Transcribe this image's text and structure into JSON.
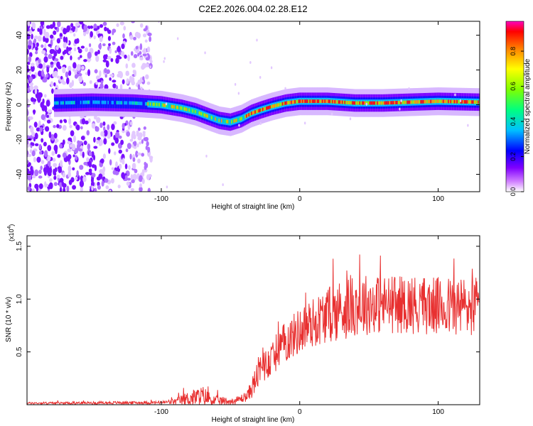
{
  "title": "C2E2.2026.004.02.28.E12",
  "chart_data": [
    {
      "type": "heatmap",
      "name": "spectrogram",
      "xlabel": "Height of straight line (km)",
      "ylabel": "Frequency (Hz)",
      "xlim": [
        -197,
        130
      ],
      "ylim": [
        -50,
        48
      ],
      "x_ticks": [
        -100,
        0,
        100
      ],
      "x_tick_labels": [
        "-100",
        "0",
        "100"
      ],
      "y_ticks": [
        40,
        20,
        0,
        -20,
        -40
      ],
      "y_tick_labels": [
        "40",
        "20",
        "0",
        "-20",
        "-40"
      ],
      "signal_track": {
        "x": [
          -175,
          -150,
          -120,
          -100,
          -85,
          -75,
          -65,
          -58,
          -50,
          -42,
          -35,
          -28,
          -20,
          -10,
          0,
          20,
          40,
          60,
          80,
          100,
          130
        ],
        "freq": [
          1,
          1.5,
          1,
          0,
          -2,
          -4,
          -7,
          -9,
          -10,
          -8,
          -5,
          -3,
          -1,
          1,
          2,
          2,
          1,
          1,
          1.5,
          2,
          1.5
        ]
      },
      "colorbar": {
        "label": "Normalized spectral amplitude",
        "range": [
          0.0,
          0.97
        ],
        "ticks": [
          0.0,
          0.2,
          0.4,
          0.6,
          0.8
        ],
        "tick_labels": [
          "0.0",
          "0.2",
          "0.4",
          "0.6",
          "0.8"
        ],
        "colormap": [
          "#ffffff",
          "#8000ff",
          "#0000ff",
          "#00c0ff",
          "#00ff80",
          "#80ff00",
          "#ffff00",
          "#ff8000",
          "#ff0000",
          "#ff00c0"
        ]
      }
    },
    {
      "type": "line",
      "name": "snr",
      "xlabel": "Height of straight line (km)",
      "ylabel": "SNR (10 * v/v)",
      "y_multiplier": "(x10",
      "y_multiplier_exp": "4",
      "y_multiplier_close": ")",
      "xlim": [
        -197,
        130
      ],
      "ylim": [
        0,
        1.6
      ],
      "x_ticks": [
        -100,
        0,
        100
      ],
      "x_tick_labels": [
        "-100",
        "0",
        "100"
      ],
      "y_ticks": [
        0.5,
        1.0,
        1.5
      ],
      "y_tick_labels": [
        "0.5",
        "1.0",
        "1.5"
      ],
      "color": "#e83030",
      "envelope": {
        "x": [
          -197,
          -100,
          -90,
          -80,
          -70,
          -62,
          -48,
          -38,
          -33,
          -30,
          -20,
          -10,
          0,
          10,
          20,
          30,
          40,
          60,
          80,
          100,
          130
        ],
        "mean": [
          0.015,
          0.02,
          0.03,
          0.06,
          0.08,
          0.04,
          0.03,
          0.08,
          0.2,
          0.3,
          0.45,
          0.6,
          0.7,
          0.78,
          0.85,
          0.9,
          0.95,
          0.95,
          0.95,
          0.93,
          0.93
        ],
        "spread": [
          0.01,
          0.015,
          0.03,
          0.07,
          0.1,
          0.05,
          0.03,
          0.05,
          0.12,
          0.15,
          0.17,
          0.2,
          0.22,
          0.24,
          0.26,
          0.3,
          0.3,
          0.28,
          0.28,
          0.28,
          0.3
        ]
      }
    }
  ]
}
